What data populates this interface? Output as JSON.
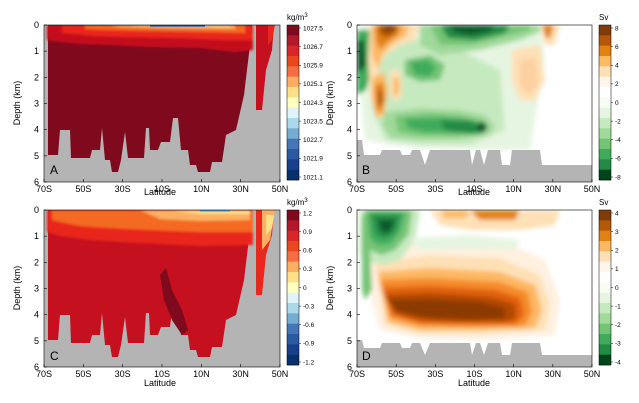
{
  "chart_data": [
    {
      "type": "heatmap",
      "panel_label": "A",
      "xlabel": "Latitude",
      "ylabel": "Depth (km)",
      "x_ticks": [
        "70S",
        "50S",
        "30S",
        "10S",
        "10N",
        "30N",
        "50N"
      ],
      "y_ticks": [
        "0",
        "1",
        "2",
        "3",
        "4",
        "5",
        "6"
      ],
      "ylim": [
        0,
        6
      ],
      "y_inverted": true,
      "colorbar": {
        "unit": "kg/m",
        "unit_sup": "3",
        "ticks": [
          "1027.5",
          "1026.7",
          "1025.9",
          "1025.1",
          "1024.3",
          "1023.5",
          "1022.7",
          "1021.9",
          "1021.1"
        ],
        "scheme": "diverging-red-blue"
      },
      "field": "potential density; values near 1027.5 throughout the interior, lighter water in a thin surface layer"
    },
    {
      "type": "heatmap",
      "panel_label": "B",
      "xlabel": "Latitude",
      "ylabel": "Depth (km)",
      "x_ticks": [
        "70S",
        "50S",
        "30S",
        "10S",
        "10N",
        "30N",
        "50N"
      ],
      "y_ticks": [
        "0",
        "1",
        "2",
        "3",
        "4",
        "5",
        "6"
      ],
      "ylim": [
        0,
        6
      ],
      "y_inverted": true,
      "colorbar": {
        "unit": "Sv",
        "ticks": [
          "8",
          "6",
          "4",
          "2",
          "0",
          "-2",
          "-4",
          "-6",
          "-8"
        ],
        "scheme": "diverging-brown-green"
      },
      "field": "meridional overturning streamfunction; negative cells near surface 20S-0 and 3.5-4.5 km, positive cells near 60S and 20N"
    },
    {
      "type": "heatmap",
      "panel_label": "C",
      "xlabel": "Latitude",
      "ylabel": "Depth (km)",
      "x_ticks": [
        "70S",
        "50S",
        "30S",
        "10S",
        "10N",
        "30N",
        "50N"
      ],
      "y_ticks": [
        "0",
        "1",
        "2",
        "3",
        "4",
        "5",
        "6"
      ],
      "ylim": [
        0,
        6
      ],
      "y_inverted": true,
      "colorbar": {
        "unit": "kg/m",
        "unit_sup": "3",
        "ticks": [
          "1.2",
          "0.9",
          "0.6",
          "0.3",
          "0",
          "-0.3",
          "-0.6",
          "-0.9",
          "-1.2"
        ],
        "scheme": "diverging-red-blue"
      },
      "field": "density anomaly; mostly +0.9 to +1.2 in the interior, smaller positive values near the surface"
    },
    {
      "type": "heatmap",
      "panel_label": "D",
      "xlabel": "Latitude",
      "ylabel": "Depth (km)",
      "x_ticks": [
        "70S",
        "50S",
        "30S",
        "10S",
        "10N",
        "30N",
        "50N"
      ],
      "y_ticks": [
        "0",
        "1",
        "2",
        "3",
        "4",
        "5",
        "6"
      ],
      "ylim": [
        0,
        6
      ],
      "y_inverted": true,
      "colorbar": {
        "unit": "Sv",
        "ticks": [
          "4",
          "3",
          "2",
          "1",
          "0",
          "-1",
          "-2",
          "-3",
          "-4"
        ],
        "scheme": "diverging-brown-green"
      },
      "field": "overturning anomaly; strong positive (~4) cell 3.5-4.5 km from 60S to 20N, negative cell near 55S upper 2 km"
    }
  ],
  "colors": {
    "land": "#b4b4b4",
    "dark_red": "#7f0a1e",
    "brown": "#8c3a06",
    "dark_green": "#0c5a2c"
  }
}
